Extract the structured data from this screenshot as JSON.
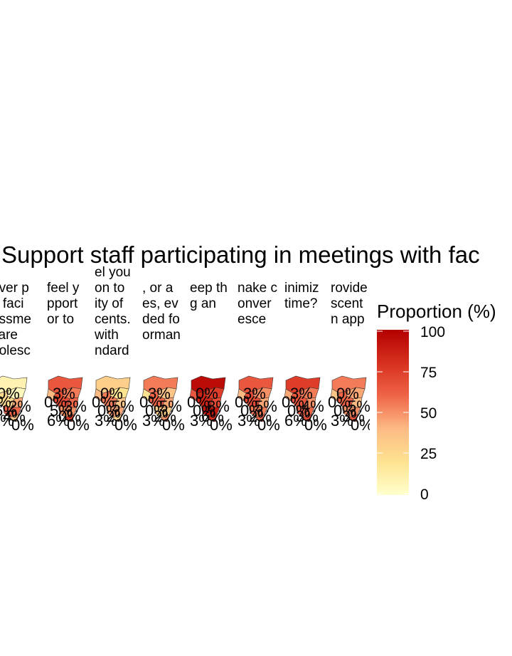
{
  "chart_data": {
    "type": "map",
    "title": "Support staff participating in meetings with fac",
    "panels": [
      {
        "strip_lines": [
          "ever p",
          "a faci",
          "essme",
          " care",
          "dolesc"
        ],
        "labels": [
          "0%",
          "0%",
          "2%",
          "5%",
          "4%",
          "3%",
          "0%"
        ],
        "region_values": [
          10,
          5,
          25,
          45,
          60,
          15,
          35
        ]
      },
      {
        "strip_lines": [
          "feel y",
          "pport",
          "or to"
        ],
        "labels": [
          "3%",
          "0%",
          "3%",
          "5%",
          "0%",
          "6%",
          "0%"
        ],
        "region_values": [
          65,
          55,
          70,
          60,
          50,
          40,
          75
        ]
      },
      {
        "strip_lines": [
          "el you",
          "on to",
          "ity of",
          "cents.",
          "with",
          "ndard"
        ],
        "labels": [
          "0%",
          "0%",
          "5%",
          "0%",
          "2%",
          "3%",
          "0%"
        ],
        "region_values": [
          30,
          20,
          55,
          35,
          45,
          40,
          25
        ]
      },
      {
        "strip_lines": [
          ", or a",
          "es, ev",
          "ded fo",
          "orman"
        ],
        "labels": [
          "3%",
          "0%",
          "5%",
          "0%",
          "2%",
          "3%",
          "0%"
        ],
        "region_values": [
          55,
          35,
          60,
          45,
          30,
          20,
          50
        ]
      },
      {
        "strip_lines": [
          "eep th",
          "g an"
        ],
        "labels": [
          "0%",
          "0%",
          "8%",
          "0%",
          "6%",
          "3%",
          "0%"
        ],
        "region_values": [
          95,
          75,
          85,
          70,
          90,
          65,
          80
        ]
      },
      {
        "strip_lines": [
          "nake c",
          "onver",
          "esce"
        ],
        "labels": [
          "3%",
          "0%",
          "5%",
          "0%",
          "2%",
          "3%",
          "0%"
        ],
        "region_values": [
          65,
          50,
          70,
          45,
          55,
          40,
          60
        ]
      },
      {
        "strip_lines": [
          "inimiz",
          "time?"
        ],
        "labels": [
          "3%",
          "0%",
          "4%",
          "0%",
          "3%",
          "6%",
          "0%"
        ],
        "region_values": [
          75,
          55,
          65,
          50,
          60,
          45,
          70
        ]
      },
      {
        "strip_lines": [
          "rovide",
          "scent",
          "n app"
        ],
        "labels": [
          "0%",
          "0%",
          "5%",
          "0%",
          "3%",
          "3%",
          "0%"
        ],
        "region_values": [
          55,
          45,
          60,
          40,
          50,
          35,
          65
        ]
      }
    ],
    "legend": {
      "title": "Proportion (%)",
      "ticks": [
        100,
        75,
        50,
        25,
        0
      ],
      "range": [
        0,
        100
      ],
      "colors": [
        "#ffffcc",
        "#fee391",
        "#fdbb84",
        "#ef6548",
        "#d7301f",
        "#b30000"
      ]
    },
    "grid": false
  }
}
